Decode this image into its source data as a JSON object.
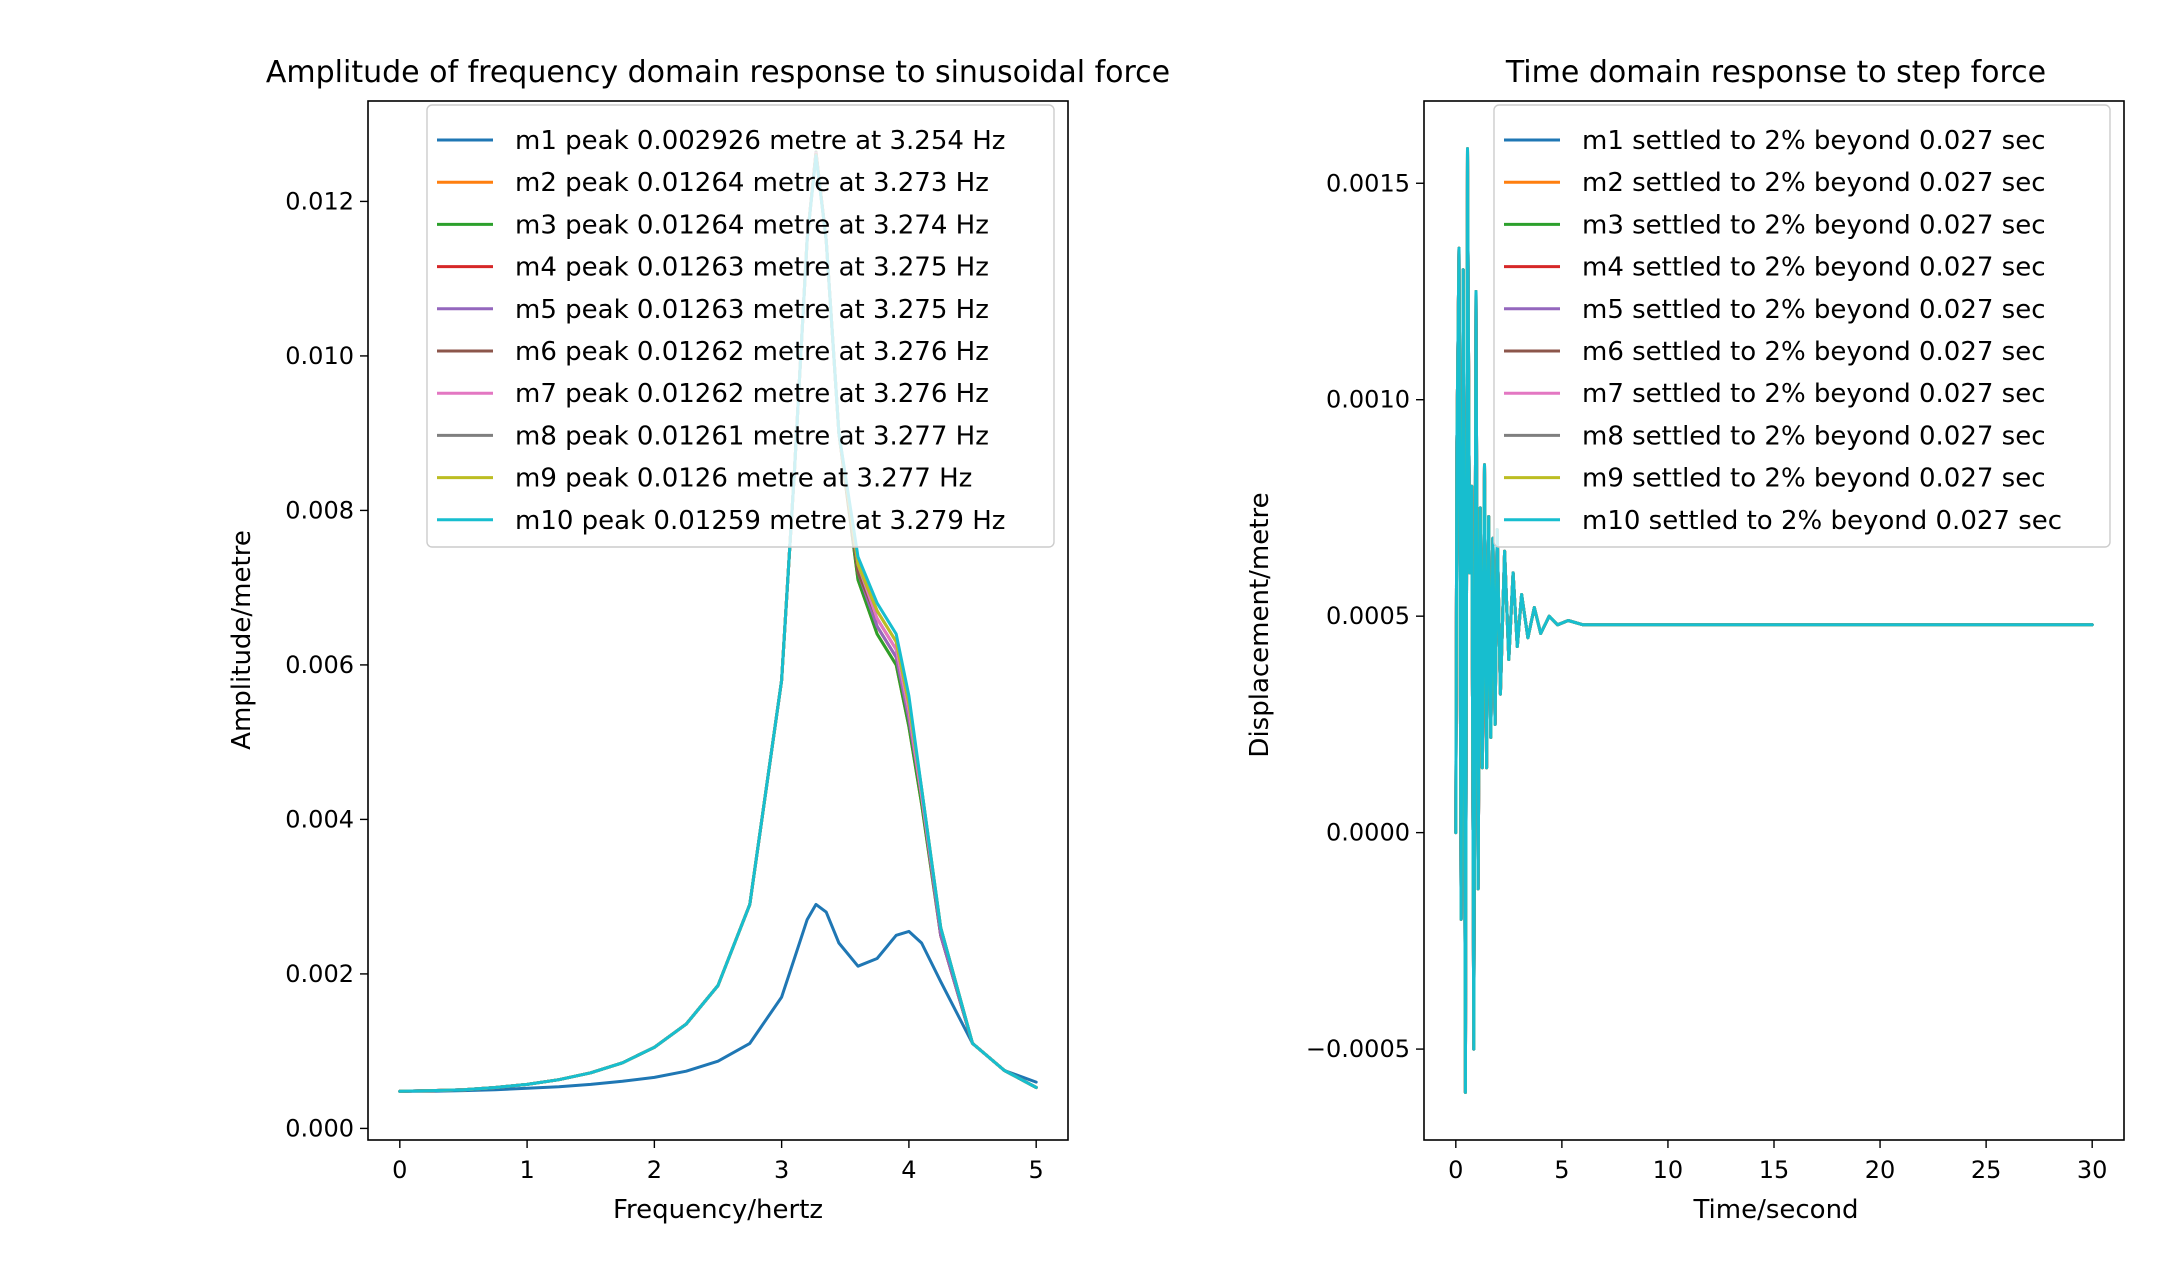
{
  "figure": {
    "background": "#ffffff"
  },
  "chart_data": [
    {
      "type": "line",
      "title": "Amplitude of frequency domain response to sinusoidal force",
      "xlabel": "Frequency/hertz",
      "ylabel": "Amplitude/metre",
      "xlim": [
        -0.25,
        5.25
      ],
      "ylim": [
        -0.00015,
        0.0133
      ],
      "xticks": [
        0,
        1,
        2,
        3,
        4,
        5
      ],
      "xtick_labels": [
        "0",
        "1",
        "2",
        "3",
        "4",
        "5"
      ],
      "yticks": [
        0.0,
        0.002,
        0.004,
        0.006,
        0.008,
        0.01,
        0.012
      ],
      "ytick_labels": [
        "0.000",
        "0.002",
        "0.004",
        "0.006",
        "0.008",
        "0.010",
        "0.012"
      ],
      "grid": false,
      "legend_position": "top-right",
      "x": [
        0,
        0.25,
        0.5,
        0.75,
        1.0,
        1.25,
        1.5,
        1.75,
        2.0,
        2.25,
        2.5,
        2.75,
        3.0,
        3.1,
        3.2,
        3.27,
        3.35,
        3.45,
        3.6,
        3.75,
        3.9,
        4.0,
        4.1,
        4.25,
        4.5,
        4.75,
        5.0
      ],
      "series": [
        {
          "name": "m1 peak 0.002926 metre at 3.254 Hz",
          "color": "#1f77b4",
          "values": [
            0.00048,
            0.00048,
            0.00049,
            0.0005,
            0.00052,
            0.00054,
            0.00057,
            0.00061,
            0.00066,
            0.00074,
            0.00087,
            0.0011,
            0.0017,
            0.0022,
            0.0027,
            0.0029,
            0.0028,
            0.0024,
            0.0021,
            0.0022,
            0.0025,
            0.00255,
            0.0024,
            0.0019,
            0.0011,
            0.00075,
            0.0006
          ]
        },
        {
          "name": "m2 peak 0.01264 metre at 3.273 Hz",
          "color": "#ff7f0e",
          "values": [
            0.00048,
            0.00049,
            0.0005,
            0.00053,
            0.00057,
            0.00063,
            0.00072,
            0.00085,
            0.00105,
            0.00135,
            0.00185,
            0.0029,
            0.0058,
            0.0085,
            0.0115,
            0.01264,
            0.0115,
            0.009,
            0.0071,
            0.0064,
            0.006,
            0.0052,
            0.0042,
            0.0025,
            0.0011,
            0.00075,
            0.00053
          ]
        },
        {
          "name": "m3 peak 0.01264 metre at 3.274 Hz",
          "color": "#2ca02c",
          "values": [
            0.00048,
            0.00049,
            0.0005,
            0.00053,
            0.00057,
            0.00063,
            0.00072,
            0.00085,
            0.00105,
            0.00135,
            0.00185,
            0.0029,
            0.0058,
            0.0085,
            0.0115,
            0.01264,
            0.0115,
            0.009,
            0.0071,
            0.0064,
            0.006,
            0.0052,
            0.0042,
            0.0025,
            0.0011,
            0.00075,
            0.00053
          ]
        },
        {
          "name": "m4 peak 0.01263 metre at 3.275 Hz",
          "color": "#d62728",
          "values": [
            0.00048,
            0.00049,
            0.0005,
            0.00053,
            0.00057,
            0.00063,
            0.00072,
            0.00085,
            0.00105,
            0.00135,
            0.00185,
            0.0029,
            0.0058,
            0.0085,
            0.0115,
            0.01263,
            0.0115,
            0.009,
            0.0072,
            0.0065,
            0.0061,
            0.0053,
            0.0043,
            0.0025,
            0.0011,
            0.00075,
            0.00053
          ]
        },
        {
          "name": "m5 peak 0.01263 metre at 3.275 Hz",
          "color": "#9467bd",
          "values": [
            0.00048,
            0.00049,
            0.0005,
            0.00053,
            0.00057,
            0.00063,
            0.00072,
            0.00085,
            0.00105,
            0.00135,
            0.00185,
            0.0029,
            0.0058,
            0.0085,
            0.0115,
            0.01263,
            0.0115,
            0.009,
            0.0072,
            0.0065,
            0.0061,
            0.0053,
            0.0043,
            0.0025,
            0.0011,
            0.00075,
            0.00053
          ]
        },
        {
          "name": "m6 peak 0.01262 metre at 3.276 Hz",
          "color": "#8c564b",
          "values": [
            0.00048,
            0.00049,
            0.0005,
            0.00053,
            0.00057,
            0.00063,
            0.00072,
            0.00085,
            0.00105,
            0.00135,
            0.00185,
            0.0029,
            0.0058,
            0.0085,
            0.0115,
            0.01262,
            0.0115,
            0.009,
            0.0072,
            0.0066,
            0.0062,
            0.0054,
            0.0043,
            0.0026,
            0.0011,
            0.00075,
            0.00053
          ]
        },
        {
          "name": "m7 peak 0.01262 metre at 3.276 Hz",
          "color": "#e377c2",
          "values": [
            0.00048,
            0.00049,
            0.0005,
            0.00053,
            0.00057,
            0.00063,
            0.00072,
            0.00085,
            0.00105,
            0.00135,
            0.00185,
            0.0029,
            0.0058,
            0.0085,
            0.0115,
            0.01262,
            0.0115,
            0.009,
            0.0073,
            0.0066,
            0.0062,
            0.0054,
            0.0043,
            0.0026,
            0.0011,
            0.00075,
            0.00053
          ]
        },
        {
          "name": "m8 peak 0.01261 metre at 3.277 Hz",
          "color": "#7f7f7f",
          "values": [
            0.00048,
            0.00049,
            0.0005,
            0.00053,
            0.00057,
            0.00063,
            0.00072,
            0.00085,
            0.00105,
            0.00135,
            0.00185,
            0.0029,
            0.0058,
            0.0085,
            0.0115,
            0.01261,
            0.0115,
            0.009,
            0.0073,
            0.0067,
            0.0063,
            0.0055,
            0.0044,
            0.0026,
            0.0011,
            0.00075,
            0.00053
          ]
        },
        {
          "name": "m9 peak 0.0126 metre at 3.277 Hz",
          "color": "#bcbd22",
          "values": [
            0.00048,
            0.00049,
            0.0005,
            0.00053,
            0.00057,
            0.00063,
            0.00072,
            0.00085,
            0.00105,
            0.00135,
            0.00185,
            0.0029,
            0.0058,
            0.0085,
            0.0115,
            0.0126,
            0.0115,
            0.009,
            0.0073,
            0.0067,
            0.0063,
            0.0055,
            0.0044,
            0.0026,
            0.0011,
            0.00075,
            0.00053
          ]
        },
        {
          "name": "m10 peak 0.01259 metre at 3.279 Hz",
          "color": "#17becf",
          "values": [
            0.00048,
            0.00049,
            0.0005,
            0.00053,
            0.00057,
            0.00063,
            0.00072,
            0.00085,
            0.00105,
            0.00135,
            0.00185,
            0.0029,
            0.0058,
            0.0085,
            0.0115,
            0.01259,
            0.0115,
            0.009,
            0.0074,
            0.0068,
            0.0064,
            0.0056,
            0.0044,
            0.0026,
            0.0011,
            0.00075,
            0.00053
          ]
        }
      ]
    },
    {
      "type": "line",
      "title": "Time domain response to step force",
      "xlabel": "Time/second",
      "ylabel": "Displacement/metre",
      "xlim": [
        -1.5,
        31.5
      ],
      "ylim": [
        -0.00071,
        0.00169
      ],
      "xticks": [
        0,
        5,
        10,
        15,
        20,
        25,
        30
      ],
      "xtick_labels": [
        "0",
        "5",
        "10",
        "15",
        "20",
        "25",
        "30"
      ],
      "yticks": [
        -0.0005,
        0.0,
        0.0005,
        0.001,
        0.0015
      ],
      "ytick_labels": [
        "−0.0005",
        "0.0000",
        "0.0005",
        "0.0010",
        "0.0015"
      ],
      "grid": false,
      "legend_position": "top-right",
      "x": [
        0,
        0.05,
        0.15,
        0.25,
        0.35,
        0.45,
        0.55,
        0.65,
        0.75,
        0.85,
        0.95,
        1.05,
        1.15,
        1.25,
        1.35,
        1.45,
        1.55,
        1.65,
        1.75,
        1.85,
        1.95,
        2.1,
        2.3,
        2.5,
        2.7,
        2.9,
        3.1,
        3.4,
        3.7,
        4.0,
        4.4,
        4.8,
        5.3,
        6.0,
        8.0,
        12.0,
        20.0,
        30.0
      ],
      "series": [
        {
          "name": "m1 settled to 2% beyond 0.027 sec",
          "color": "#1f77b4",
          "values": [
            0.0,
            0.0009,
            0.00135,
            -0.0002,
            0.0013,
            -0.0006,
            0.00158,
            0.0006,
            0.0008,
            -0.0005,
            0.00125,
            -0.00013,
            0.00075,
            0.00015,
            0.00085,
            0.00015,
            0.00073,
            0.00022,
            0.00068,
            0.00025,
            0.0007,
            0.00032,
            0.00065,
            0.0004,
            0.0006,
            0.00043,
            0.00055,
            0.00045,
            0.00052,
            0.00046,
            0.0005,
            0.00048,
            0.00049,
            0.00048,
            0.00048,
            0.00048,
            0.00048,
            0.00048
          ]
        },
        {
          "name": "m2 settled to 2% beyond 0.027 sec",
          "color": "#ff7f0e",
          "values": [
            0.0,
            0.0009,
            0.00135,
            -0.0002,
            0.0013,
            -0.0006,
            0.00158,
            0.0006,
            0.0008,
            -0.0005,
            0.00125,
            -0.00013,
            0.00075,
            0.00015,
            0.00085,
            0.00015,
            0.00073,
            0.00022,
            0.00068,
            0.00025,
            0.0007,
            0.00032,
            0.00065,
            0.0004,
            0.0006,
            0.00043,
            0.00055,
            0.00045,
            0.00052,
            0.00046,
            0.0005,
            0.00048,
            0.00049,
            0.00048,
            0.00048,
            0.00048,
            0.00048,
            0.00048
          ]
        },
        {
          "name": "m3 settled to 2% beyond 0.027 sec",
          "color": "#2ca02c",
          "values": [
            0.0,
            0.0009,
            0.00135,
            -0.0002,
            0.0013,
            -0.0006,
            0.00158,
            0.0006,
            0.0008,
            -0.0005,
            0.00125,
            -0.00013,
            0.00075,
            0.00015,
            0.00085,
            0.00015,
            0.00073,
            0.00022,
            0.00068,
            0.00025,
            0.0007,
            0.00032,
            0.00065,
            0.0004,
            0.0006,
            0.00043,
            0.00055,
            0.00045,
            0.00052,
            0.00046,
            0.0005,
            0.00048,
            0.00049,
            0.00048,
            0.00048,
            0.00048,
            0.00048,
            0.00048
          ]
        },
        {
          "name": "m4 settled to 2% beyond 0.027 sec",
          "color": "#d62728",
          "values": [
            0.0,
            0.0009,
            0.00135,
            -0.0002,
            0.0013,
            -0.0006,
            0.00158,
            0.0006,
            0.0008,
            -0.0005,
            0.00125,
            -0.00013,
            0.00075,
            0.00015,
            0.00085,
            0.00015,
            0.00073,
            0.00022,
            0.00068,
            0.00025,
            0.0007,
            0.00032,
            0.00065,
            0.0004,
            0.0006,
            0.00043,
            0.00055,
            0.00045,
            0.00052,
            0.00046,
            0.0005,
            0.00048,
            0.00049,
            0.00048,
            0.00048,
            0.00048,
            0.00048,
            0.00048
          ]
        },
        {
          "name": "m5 settled to 2% beyond 0.027 sec",
          "color": "#9467bd",
          "values": [
            0.0,
            0.0009,
            0.00135,
            -0.0002,
            0.0013,
            -0.0006,
            0.00158,
            0.0006,
            0.0008,
            -0.0005,
            0.00125,
            -0.00013,
            0.00075,
            0.00015,
            0.00085,
            0.00015,
            0.00073,
            0.00022,
            0.00068,
            0.00025,
            0.0007,
            0.00032,
            0.00065,
            0.0004,
            0.0006,
            0.00043,
            0.00055,
            0.00045,
            0.00052,
            0.00046,
            0.0005,
            0.00048,
            0.00049,
            0.00048,
            0.00048,
            0.00048,
            0.00048,
            0.00048
          ]
        },
        {
          "name": "m6 settled to 2% beyond 0.027 sec",
          "color": "#8c564b",
          "values": [
            0.0,
            0.0009,
            0.00135,
            -0.0002,
            0.0013,
            -0.0006,
            0.00158,
            0.0006,
            0.0008,
            -0.0005,
            0.00125,
            -0.00013,
            0.00075,
            0.00015,
            0.00085,
            0.00015,
            0.00073,
            0.00022,
            0.00068,
            0.00025,
            0.0007,
            0.00032,
            0.00065,
            0.0004,
            0.0006,
            0.00043,
            0.00055,
            0.00045,
            0.00052,
            0.00046,
            0.0005,
            0.00048,
            0.00049,
            0.00048,
            0.00048,
            0.00048,
            0.00048,
            0.00048
          ]
        },
        {
          "name": "m7 settled to 2% beyond 0.027 sec",
          "color": "#e377c2",
          "values": [
            0.0,
            0.0009,
            0.00135,
            -0.0002,
            0.0013,
            -0.0006,
            0.00158,
            0.0006,
            0.0008,
            -0.0005,
            0.00125,
            -0.00013,
            0.00075,
            0.00015,
            0.00085,
            0.00015,
            0.00073,
            0.00022,
            0.00068,
            0.00025,
            0.0007,
            0.00032,
            0.00065,
            0.0004,
            0.0006,
            0.00043,
            0.00055,
            0.00045,
            0.00052,
            0.00046,
            0.0005,
            0.00048,
            0.00049,
            0.00048,
            0.00048,
            0.00048,
            0.00048,
            0.00048
          ]
        },
        {
          "name": "m8 settled to 2% beyond 0.027 sec",
          "color": "#7f7f7f",
          "values": [
            0.0,
            0.0009,
            0.00135,
            -0.0002,
            0.0013,
            -0.0006,
            0.00158,
            0.0006,
            0.0008,
            -0.0005,
            0.00125,
            -0.00013,
            0.00075,
            0.00015,
            0.00085,
            0.00015,
            0.00073,
            0.00022,
            0.00068,
            0.00025,
            0.0007,
            0.00032,
            0.00065,
            0.0004,
            0.0006,
            0.00043,
            0.00055,
            0.00045,
            0.00052,
            0.00046,
            0.0005,
            0.00048,
            0.00049,
            0.00048,
            0.00048,
            0.00048,
            0.00048,
            0.00048
          ]
        },
        {
          "name": "m9 settled to 2% beyond 0.027 sec",
          "color": "#bcbd22",
          "values": [
            0.0,
            0.0009,
            0.00135,
            -0.0002,
            0.0013,
            -0.0006,
            0.00158,
            0.0006,
            0.0008,
            -0.0005,
            0.00125,
            -0.00013,
            0.00075,
            0.00015,
            0.00085,
            0.00015,
            0.00073,
            0.00022,
            0.00068,
            0.00025,
            0.0007,
            0.00032,
            0.00065,
            0.0004,
            0.0006,
            0.00043,
            0.00055,
            0.00045,
            0.00052,
            0.00046,
            0.0005,
            0.00048,
            0.00049,
            0.00048,
            0.00048,
            0.00048,
            0.00048,
            0.00048
          ]
        },
        {
          "name": "m10 settled to 2% beyond 0.027 sec",
          "color": "#17becf",
          "values": [
            0.0,
            0.0009,
            0.00135,
            -0.0002,
            0.0013,
            -0.0006,
            0.00158,
            0.0006,
            0.0008,
            -0.0005,
            0.00125,
            -0.00013,
            0.00075,
            0.00015,
            0.00085,
            0.00015,
            0.00073,
            0.00022,
            0.00068,
            0.00025,
            0.0007,
            0.00032,
            0.00065,
            0.0004,
            0.0006,
            0.00043,
            0.00055,
            0.00045,
            0.00052,
            0.00046,
            0.0005,
            0.00048,
            0.00049,
            0.00048,
            0.00048,
            0.00048,
            0.00048,
            0.00048
          ]
        }
      ]
    }
  ]
}
